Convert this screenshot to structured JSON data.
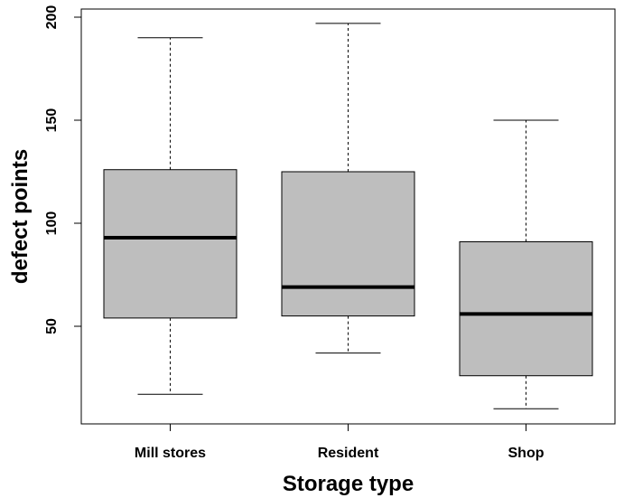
{
  "chart_data": {
    "type": "boxplot",
    "title": "",
    "xlabel": "Storage type",
    "ylabel": "defect points",
    "ylim": [
      0,
      200
    ],
    "yticks": [
      50,
      100,
      150,
      200
    ],
    "box_color": "#bebebe",
    "categories": [
      "Mill stores",
      "Resident",
      "Shop"
    ],
    "boxes": [
      {
        "category": "Mill stores",
        "min": 17,
        "q1": 54,
        "median": 93,
        "q3": 126,
        "max": 190
      },
      {
        "category": "Resident",
        "min": 37,
        "q1": 55,
        "median": 69,
        "q3": 125,
        "max": 197
      },
      {
        "category": "Shop",
        "min": 10,
        "q1": 26,
        "median": 56,
        "q3": 91,
        "max": 150
      }
    ]
  }
}
